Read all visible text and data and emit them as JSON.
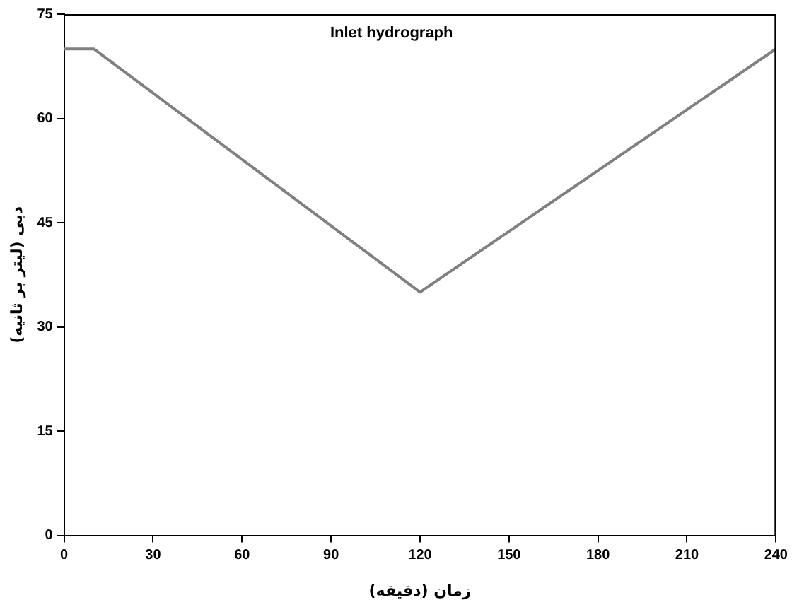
{
  "chart_data": {
    "type": "line",
    "title": "Inlet hydrograph",
    "xlabel": "زمان (دقیقه)",
    "ylabel": "دبی (لیتر بر ثانیه)",
    "x": [
      0,
      10,
      120,
      240
    ],
    "series": [
      {
        "color": "#808080",
        "values": [
          70,
          70,
          35,
          70
        ]
      }
    ],
    "xlim": [
      0,
      240
    ],
    "xticks": [
      0,
      30,
      60,
      90,
      120,
      150,
      180,
      210,
      240
    ],
    "ylim": [
      0,
      75
    ],
    "yticks": [
      0,
      15,
      30,
      45,
      60,
      75
    ],
    "grid": false,
    "legend": false,
    "marker": "none",
    "line_style": "solid"
  }
}
